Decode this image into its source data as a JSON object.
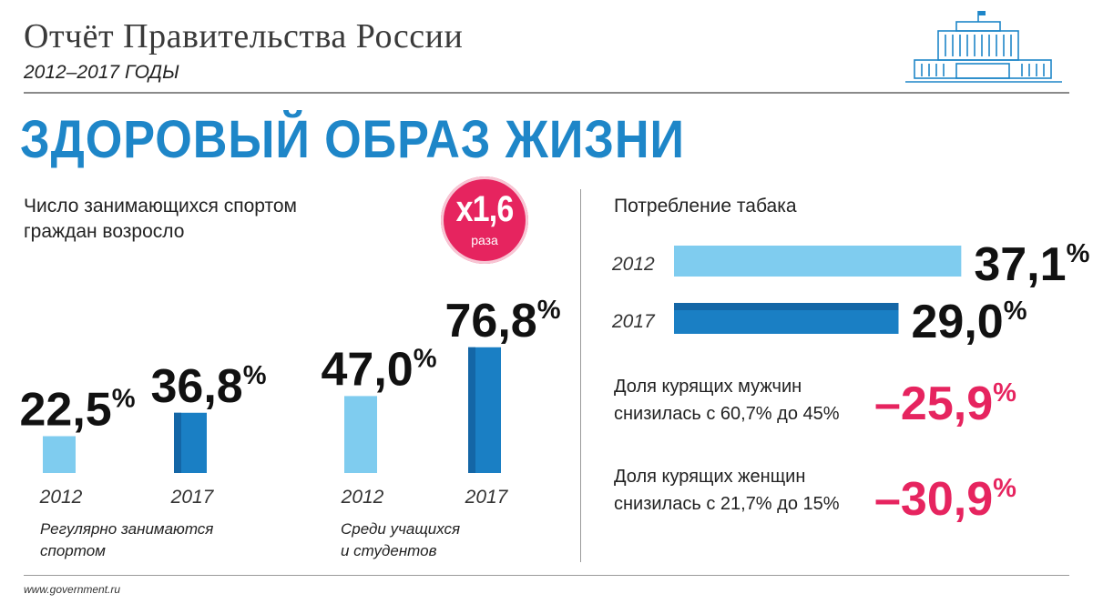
{
  "header": {
    "title": "Отчёт Правительства России",
    "years": "2012–2017 ГОДЫ",
    "source": "www.government.ru"
  },
  "main": {
    "heading": "ЗДОРОВЫЙ ОБРАЗ ЖИЗНИ"
  },
  "sport": {
    "label_line1": "Число занимающихся спортом",
    "label_line2": "граждан возросло",
    "badge_value": "х1,6",
    "badge_unit": "раза",
    "group1_caption_line1": "Регулярно занимаются",
    "group1_caption_line2": "спортом",
    "group2_caption_line1": "Среди учащихся",
    "group2_caption_line2": "и студентов"
  },
  "tobacco": {
    "label": "Потребление табака",
    "men_line1": "Доля курящих мужчин",
    "men_line2": "снизилась с 60,7% до 45%",
    "men_change": "–25,9%",
    "women_line1": "Доля курящих женщин",
    "women_line2": "снизилась с 21,7% до 15%",
    "women_change": "–30,9%"
  },
  "colors": {
    "brand_blue": "#1e86c8",
    "bar_light": "#7fccef",
    "bar_dark": "#1a7fc4",
    "bar_dark_shade": "#1466a6",
    "accent_pink": "#e6245f",
    "text_dark": "#111111"
  },
  "chart_data": [
    {
      "type": "bar",
      "title": "Регулярно занимаются спортом",
      "categories": [
        "2012",
        "2017"
      ],
      "values": [
        22.5,
        36.8
      ],
      "labels": [
        "22,5",
        "36,8"
      ],
      "unit": "%"
    },
    {
      "type": "bar",
      "title": "Среди учащихся и студентов",
      "categories": [
        "2012",
        "2017"
      ],
      "values": [
        47.0,
        76.8
      ],
      "labels": [
        "47,0",
        "76,8"
      ],
      "unit": "%"
    },
    {
      "type": "bar",
      "orientation": "horizontal",
      "title": "Потребление табака",
      "categories": [
        "2012",
        "2017"
      ],
      "values": [
        37.1,
        29.0
      ],
      "labels": [
        "37,1",
        "29,0"
      ],
      "unit": "%"
    }
  ]
}
